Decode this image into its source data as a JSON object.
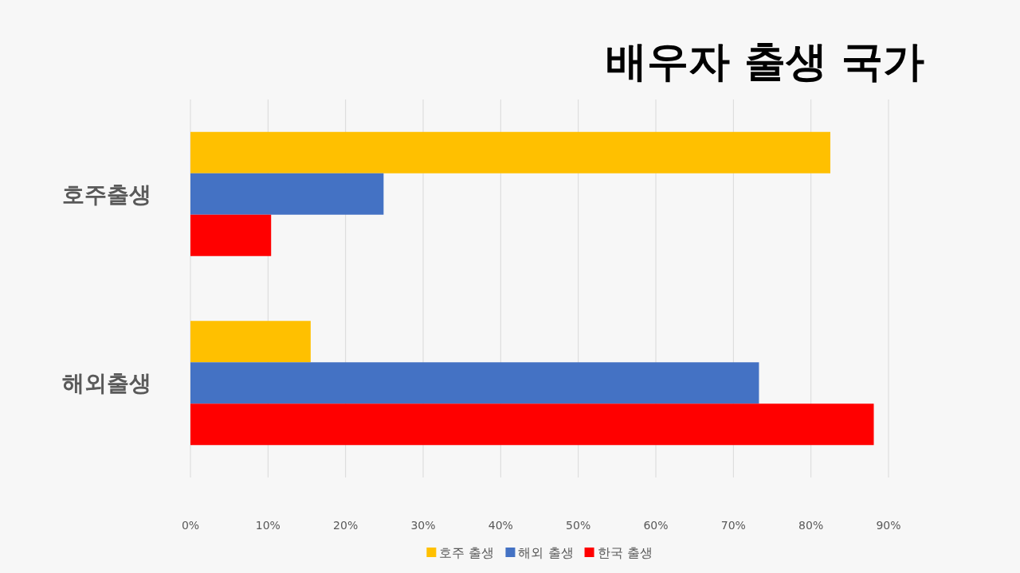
{
  "chart_data": {
    "type": "bar",
    "orientation": "horizontal",
    "title": "배우자 출생 국가",
    "categories": [
      "호주출생",
      "해외출생"
    ],
    "series": [
      {
        "name": "호주 출생",
        "color": "#ffc000",
        "values": [
          82.5,
          15.5
        ]
      },
      {
        "name": "해외 출생",
        "color": "#4472c4",
        "values": [
          24.9,
          73.3
        ]
      },
      {
        "name": "한국 출생",
        "color": "#ff0000",
        "values": [
          10.4,
          88.1
        ]
      }
    ],
    "xlim": [
      0,
      90
    ],
    "xticks": [
      {
        "value": 0,
        "label": "0%"
      },
      {
        "value": 10,
        "label": "10%"
      },
      {
        "value": 20,
        "label": "20%"
      },
      {
        "value": 30,
        "label": "30%"
      },
      {
        "value": 40,
        "label": "40%"
      },
      {
        "value": 50,
        "label": "50%"
      },
      {
        "value": 60,
        "label": "60%"
      },
      {
        "value": 70,
        "label": "70%"
      },
      {
        "value": 80,
        "label": "80%"
      },
      {
        "value": 90,
        "label": "90%"
      }
    ],
    "grid": "x",
    "legend": "bottom"
  }
}
